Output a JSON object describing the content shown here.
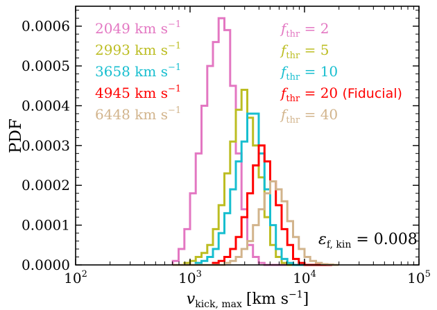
{
  "chart_data": {
    "type": "line",
    "title": "",
    "ylabel": "PDF",
    "xlabel_parts": {
      "var": "v",
      "sub": "kick, max",
      "unit_open": "[km s",
      "unit_exp": "−1",
      "unit_close": "]"
    },
    "xscale": "log",
    "xlim": [
      100,
      100000
    ],
    "ylim": [
      0,
      0.00065
    ],
    "x_ticks": [
      {
        "value": 100,
        "base": "10",
        "exp": "2"
      },
      {
        "value": 1000,
        "base": "10",
        "exp": "3"
      },
      {
        "value": 10000,
        "base": "10",
        "exp": "4"
      },
      {
        "value": 100000,
        "base": "10",
        "exp": "5"
      }
    ],
    "y_ticks": [
      {
        "value": 0,
        "label": "0.0000"
      },
      {
        "value": 0.0001,
        "label": "0.0001"
      },
      {
        "value": 0.0002,
        "label": "0.0002"
      },
      {
        "value": 0.0003,
        "label": "0.0003"
      },
      {
        "value": 0.0004,
        "label": "0.0004"
      },
      {
        "value": 0.0005,
        "label": "0.0005"
      },
      {
        "value": 0.0006,
        "label": "0.0006"
      }
    ],
    "grid": false,
    "ticks_direction": "in",
    "legend_placement": "top",
    "bin_edges": [
      707.9,
      794.3,
      891.3,
      1000,
      1122,
      1259,
      1413,
      1585,
      1778,
      1995,
      2239,
      2512,
      2818,
      3162,
      3548,
      3981,
      4467,
      5012,
      5623,
      6310,
      7079,
      7943,
      8913,
      10000,
      11220,
      12590,
      14130,
      15850,
      17780,
      19950
    ],
    "series": [
      {
        "color": "#e377c2",
        "legend_left": {
          "value": "2049",
          "unit_main": "km s",
          "unit_exp": "−1"
        },
        "legend_right": {
          "sym": "f",
          "sub": "thr",
          "text": " = 2"
        },
        "values": [
          1e-05,
          4e-05,
          9e-05,
          0.00018,
          0.00028,
          0.0004,
          0.0005,
          0.00056,
          0.00062,
          0.00059,
          0.00045,
          0.00028,
          0.00014,
          5e-05,
          2e-05,
          5e-06,
          0,
          0,
          0,
          0,
          0,
          0,
          0,
          0,
          0,
          0,
          0,
          0,
          0
        ]
      },
      {
        "color": "#bcbd22",
        "legend_left": {
          "value": "2993",
          "unit_main": "km s",
          "unit_exp": "−1"
        },
        "legend_right": {
          "sym": "f",
          "sub": "thr",
          "text": " = 5"
        },
        "values": [
          0,
          0,
          5e-06,
          1e-05,
          2e-05,
          3e-05,
          5e-05,
          9e-05,
          0.00015,
          0.00023,
          0.00031,
          0.00039,
          0.00044,
          0.00037,
          0.0003,
          0.00022,
          0.00012,
          5e-05,
          2e-05,
          5e-06,
          0,
          0,
          0,
          0,
          0,
          0,
          0,
          0,
          0
        ]
      },
      {
        "color": "#17becf",
        "legend_left": {
          "value": "3658",
          "unit_main": "km s",
          "unit_exp": "−1"
        },
        "legend_right": {
          "sym": "f",
          "sub": "thr",
          "text": " = 10"
        },
        "values": [
          0,
          0,
          0,
          0,
          5e-06,
          1e-05,
          2e-05,
          4e-05,
          8e-05,
          0.00013,
          0.00019,
          0.00026,
          0.00031,
          0.00038,
          0.00038,
          0.00028,
          0.00019,
          0.0001,
          4e-05,
          1.5e-05,
          5e-06,
          0,
          0,
          0,
          0,
          0,
          0,
          0,
          0
        ]
      },
      {
        "color": "#ff0000",
        "legend_left": {
          "value": "4945",
          "unit_main": "km s",
          "unit_exp": "−1"
        },
        "legend_right": {
          "sym": "f",
          "sub": "thr",
          "text": " = 20 ",
          "extra": "(Fiducial)"
        },
        "values": [
          0,
          0,
          0,
          0,
          0,
          0,
          0,
          5e-06,
          1e-05,
          2e-05,
          4e-05,
          7e-05,
          0.00012,
          0.00018,
          0.00025,
          0.0003,
          0.00026,
          0.00021,
          0.00015,
          9e-05,
          5e-05,
          1.5e-05,
          5e-06,
          0,
          0,
          0,
          0,
          0,
          0
        ]
      },
      {
        "color": "#d2b48c",
        "legend_left": {
          "value": "6448",
          "unit_main": "km s",
          "unit_exp": "−1"
        },
        "legend_right": {
          "sym": "f",
          "sub": "thr",
          "text": " = 40"
        },
        "values": [
          0,
          0,
          0,
          0,
          0,
          0,
          0,
          0,
          0,
          5e-06,
          1e-05,
          2e-05,
          4e-05,
          6e-05,
          0.0001,
          0.00014,
          0.00018,
          0.00021,
          0.00019,
          0.00016,
          0.00011,
          7e-05,
          4e-05,
          2e-05,
          1e-05,
          5e-06,
          2e-06,
          1e-06,
          0
        ]
      }
    ],
    "annotation": {
      "sym": "ε",
      "sub": "f, kin",
      "text": " = 0.008"
    }
  }
}
